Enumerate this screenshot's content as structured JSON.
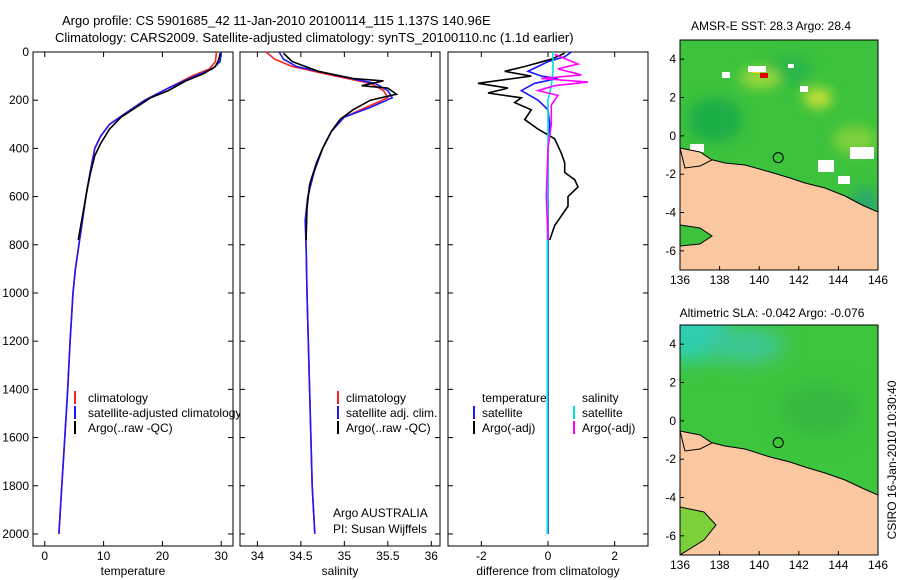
{
  "header": {
    "line1": "Argo profile: CS 5901685_42 11-Jan-2010 20100114_115 1.137S 140.96E",
    "line2": "Climatology: CARS2009. Satellite-adjusted climatology: synTS_20100110.nc (1.1d earlier)"
  },
  "colors": {
    "clim": "#ff2020",
    "sat": "#1a1aff",
    "argo": "#000000",
    "sat_diff": "#00e0e0",
    "argo_sal_diff": "#ff00ff",
    "land": "#fac8a0"
  },
  "chart_data": [
    {
      "type": "line",
      "xlabel": "temperature",
      "xlim": [
        -2,
        32
      ],
      "xticks": [
        0,
        10,
        20,
        30
      ],
      "ylim": [
        2050,
        0
      ],
      "yticks": [
        0,
        200,
        400,
        600,
        800,
        1000,
        1200,
        1400,
        1600,
        1800,
        2000
      ],
      "legend": {
        "placement": "lower-middle",
        "entries": [
          "climatology",
          "satellite-adjusted climatology",
          "Argo(..raw -QC)"
        ]
      },
      "series": [
        {
          "name": "climatology",
          "color": "#ff2020",
          "points": [
            [
              29.2,
              0
            ],
            [
              29,
              40
            ],
            [
              28,
              70
            ],
            [
              25,
              100
            ],
            [
              21,
              150
            ],
            [
              17,
              200
            ],
            [
              14,
              250
            ],
            [
              11,
              300
            ],
            [
              9.5,
              350
            ],
            [
              8.5,
              400
            ],
            [
              7.7,
              500
            ],
            [
              7,
              600
            ],
            [
              6.4,
              700
            ],
            [
              5.8,
              800
            ],
            [
              5.2,
              900
            ],
            [
              4.8,
              1000
            ],
            [
              4.3,
              1200
            ],
            [
              3.9,
              1400
            ],
            [
              3.4,
              1600
            ],
            [
              2.9,
              1800
            ],
            [
              2.4,
              2000
            ]
          ]
        },
        {
          "name": "satellite-adjusted climatology",
          "color": "#1a1aff",
          "points": [
            [
              30,
              0
            ],
            [
              29.8,
              40
            ],
            [
              28.5,
              70
            ],
            [
              25.5,
              100
            ],
            [
              21,
              150
            ],
            [
              17,
              200
            ],
            [
              14,
              250
            ],
            [
              11,
              300
            ],
            [
              9.5,
              350
            ],
            [
              8.5,
              400
            ],
            [
              7.7,
              500
            ],
            [
              7,
              600
            ],
            [
              6.4,
              700
            ],
            [
              5.8,
              800
            ],
            [
              5.2,
              900
            ],
            [
              4.8,
              1000
            ],
            [
              4.3,
              1200
            ],
            [
              3.9,
              1400
            ],
            [
              3.4,
              1600
            ],
            [
              2.9,
              1800
            ],
            [
              2.4,
              2000
            ]
          ]
        },
        {
          "name": "Argo(..raw -QC)",
          "color": "#000000",
          "points": [
            [
              29.8,
              5
            ],
            [
              29.6,
              30
            ],
            [
              29,
              60
            ],
            [
              27,
              90
            ],
            [
              24,
              120
            ],
            [
              21,
              160
            ],
            [
              18,
              190
            ],
            [
              15.5,
              230
            ],
            [
              13,
              270
            ],
            [
              11,
              320
            ],
            [
              9.5,
              380
            ],
            [
              8.5,
              430
            ],
            [
              7.8,
              500
            ],
            [
              7.2,
              570
            ],
            [
              6.7,
              640
            ],
            [
              6.2,
              710
            ],
            [
              5.7,
              780
            ]
          ]
        }
      ]
    },
    {
      "type": "line",
      "xlabel": "salinity",
      "xlim": [
        33.8,
        36.1
      ],
      "xticks": [
        34,
        34.5,
        35,
        35.5,
        36
      ],
      "ylim": [
        2050,
        0
      ],
      "legend": {
        "placement": "lower-middle",
        "entries": [
          "climatology",
          "satellite adj. clim.",
          "Argo(..raw -QC)"
        ]
      },
      "annotations": [
        "Argo AUSTRALIA",
        "PI: Susan Wijffels"
      ],
      "series": [
        {
          "name": "climatology",
          "color": "#ff2020",
          "points": [
            [
              34.1,
              0
            ],
            [
              34.2,
              30
            ],
            [
              34.4,
              60
            ],
            [
              34.9,
              100
            ],
            [
              35.3,
              130
            ],
            [
              35.45,
              160
            ],
            [
              35.5,
              190
            ],
            [
              35.25,
              230
            ],
            [
              35,
              270
            ],
            [
              34.85,
              330
            ],
            [
              34.75,
              400
            ],
            [
              34.65,
              500
            ],
            [
              34.58,
              600
            ],
            [
              34.55,
              700
            ],
            [
              34.56,
              800
            ],
            [
              34.57,
              1000
            ],
            [
              34.6,
              1400
            ],
            [
              34.63,
              1800
            ],
            [
              34.66,
              2000
            ]
          ]
        },
        {
          "name": "satellite adj. clim.",
          "color": "#1a1aff",
          "points": [
            [
              34.25,
              0
            ],
            [
              34.3,
              30
            ],
            [
              34.45,
              60
            ],
            [
              34.95,
              100
            ],
            [
              35.35,
              130
            ],
            [
              35.5,
              160
            ],
            [
              35.55,
              190
            ],
            [
              35.3,
              230
            ],
            [
              35,
              270
            ],
            [
              34.85,
              330
            ],
            [
              34.75,
              400
            ],
            [
              34.65,
              500
            ],
            [
              34.58,
              600
            ],
            [
              34.55,
              700
            ],
            [
              34.56,
              800
            ],
            [
              34.57,
              1000
            ],
            [
              34.6,
              1400
            ],
            [
              34.63,
              1800
            ],
            [
              34.66,
              2000
            ]
          ]
        },
        {
          "name": "Argo(..raw -QC)",
          "color": "#000000",
          "points": [
            [
              34.3,
              5
            ],
            [
              34.4,
              40
            ],
            [
              34.7,
              80
            ],
            [
              35.1,
              110
            ],
            [
              35.45,
              120
            ],
            [
              35.2,
              140
            ],
            [
              35.5,
              150
            ],
            [
              35.6,
              175
            ],
            [
              35.3,
              200
            ],
            [
              35.1,
              240
            ],
            [
              34.95,
              280
            ],
            [
              34.85,
              330
            ],
            [
              34.75,
              400
            ],
            [
              34.68,
              460
            ],
            [
              34.6,
              550
            ],
            [
              34.57,
              650
            ],
            [
              34.56,
              780
            ]
          ]
        }
      ]
    },
    {
      "type": "line",
      "xlabel": "difference from climatology",
      "xlim": [
        -3,
        3
      ],
      "xticks": [
        -2,
        0,
        2
      ],
      "ylim": [
        2050,
        0
      ],
      "legend": {
        "placement": "lower-middle",
        "groups": [
          {
            "title": "temperature",
            "entries": [
              "satellite",
              "Argo(-adj)"
            ]
          },
          {
            "title": "salinity",
            "entries": [
              "satellite",
              "Argo(-adj)"
            ]
          }
        ]
      },
      "series": [
        {
          "name": "satellite",
          "group": "temperature",
          "color": "#1a1aff",
          "points": [
            [
              0.7,
              0
            ],
            [
              0.5,
              20
            ],
            [
              0,
              40
            ],
            [
              -0.3,
              60
            ],
            [
              -0.6,
              80
            ],
            [
              -0.2,
              100
            ],
            [
              0.3,
              110
            ],
            [
              -0.4,
              130
            ],
            [
              -0.8,
              160
            ],
            [
              -0.3,
              200
            ],
            [
              0,
              240
            ],
            [
              0.05,
              300
            ],
            [
              0,
              400
            ],
            [
              0,
              2000
            ]
          ]
        },
        {
          "name": "Argo(-adj)",
          "group": "temperature",
          "color": "#000000",
          "points": [
            [
              0.5,
              5
            ],
            [
              0.1,
              30
            ],
            [
              -0.7,
              60
            ],
            [
              -1.3,
              80
            ],
            [
              -0.5,
              100
            ],
            [
              -2.1,
              130
            ],
            [
              -1.2,
              150
            ],
            [
              -1.8,
              170
            ],
            [
              -0.8,
              190
            ],
            [
              -1.0,
              210
            ],
            [
              -0.5,
              240
            ],
            [
              -0.7,
              280
            ],
            [
              -0.3,
              320
            ],
            [
              0.2,
              360
            ],
            [
              0.4,
              420
            ],
            [
              0.5,
              460
            ],
            [
              0.5,
              500
            ],
            [
              0.8,
              530
            ],
            [
              0.9,
              560
            ],
            [
              0.6,
              600
            ],
            [
              0.6,
              640
            ],
            [
              0.4,
              680
            ],
            [
              0.2,
              720
            ],
            [
              0.05,
              780
            ]
          ]
        },
        {
          "name": "satellite",
          "group": "salinity",
          "color": "#00e0e0",
          "points": [
            [
              0.15,
              0
            ],
            [
              0.15,
              80
            ],
            [
              0.1,
              140
            ],
            [
              0,
              200
            ],
            [
              0,
              400
            ],
            [
              -0.02,
              800
            ],
            [
              -0.02,
              2000
            ]
          ]
        },
        {
          "name": "Argo(-adj)",
          "group": "salinity",
          "color": "#ff00ff",
          "points": [
            [
              0.2,
              10
            ],
            [
              0.9,
              50
            ],
            [
              0.3,
              70
            ],
            [
              1.0,
              95
            ],
            [
              -0.2,
              110
            ],
            [
              1.2,
              125
            ],
            [
              0.2,
              140
            ],
            [
              -0.3,
              160
            ],
            [
              0.3,
              180
            ],
            [
              0.1,
              220
            ],
            [
              0.1,
              300
            ],
            [
              0,
              400
            ],
            [
              -0.05,
              600
            ],
            [
              0,
              780
            ]
          ]
        }
      ]
    },
    {
      "type": "heatmap",
      "title": "AMSR-E SST: 28.3 Argo: 28.4",
      "xlim": [
        136,
        146
      ],
      "xticks": [
        136,
        138,
        140,
        142,
        144,
        146
      ],
      "ylim": [
        -7,
        5
      ],
      "yticks": [
        -6,
        -4,
        -2,
        0,
        2,
        4
      ],
      "marker": [
        140.96,
        -1.137
      ]
    },
    {
      "type": "heatmap",
      "title": "Altimetric SLA: -0.042 Argo: -0.076",
      "xlim": [
        136,
        146
      ],
      "xticks": [
        136,
        138,
        140,
        142,
        144,
        146
      ],
      "ylim": [
        -7,
        5
      ],
      "yticks": [
        -6,
        -4,
        -2,
        0,
        2,
        4
      ],
      "marker": [
        140.96,
        -1.137
      ]
    }
  ],
  "footer": {
    "stamp": "CSIRO 16-Jan-2010 10:30:40"
  }
}
